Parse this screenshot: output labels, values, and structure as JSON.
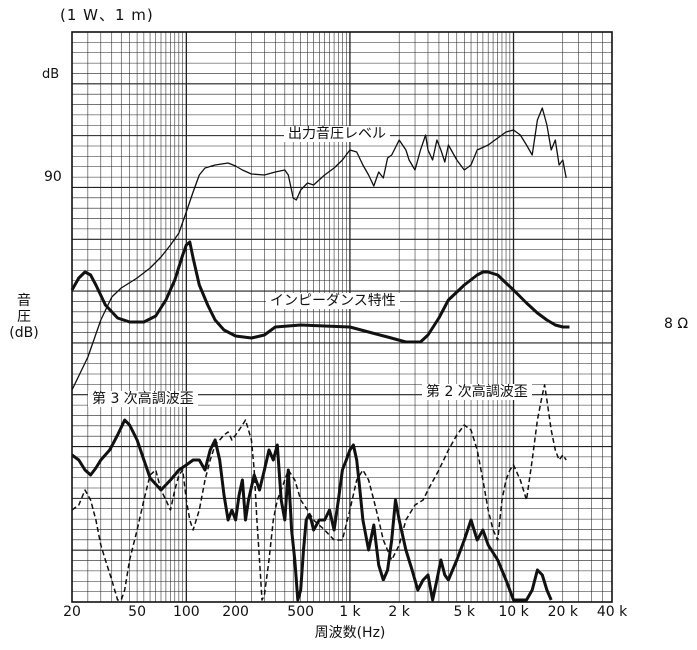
{
  "chart_data": {
    "type": "line",
    "conditions": "(1 W、1 m)",
    "xlabel": "周波数(Hz)",
    "ylabel": "音\n圧\n(dB)",
    "y_unit": "dB",
    "y_tick_90": "90",
    "right_label": "8 Ω",
    "x_scale": "log",
    "xlim": [
      20,
      40000
    ],
    "grid": true,
    "x_ticks": [
      {
        "v": 20,
        "label": "20"
      },
      {
        "v": 50,
        "label": "50"
      },
      {
        "v": 100,
        "label": "100"
      },
      {
        "v": 200,
        "label": "200"
      },
      {
        "v": 500,
        "label": "500"
      },
      {
        "v": 1000,
        "label": "1 k"
      },
      {
        "v": 2000,
        "label": "2 k"
      },
      {
        "v": 5000,
        "label": "5 k"
      },
      {
        "v": 10000,
        "label": "10 k"
      },
      {
        "v": 20000,
        "label": "20 k"
      },
      {
        "v": 40000,
        "label": "40 k"
      }
    ],
    "series": [
      {
        "name": "出力音圧レベル",
        "style": "thin",
        "points": [
          [
            20,
            390
          ],
          [
            25,
            357
          ],
          [
            30,
            320
          ],
          [
            35,
            297
          ],
          [
            40,
            288
          ],
          [
            50,
            278
          ],
          [
            60,
            268
          ],
          [
            70,
            257
          ],
          [
            80,
            245
          ],
          [
            90,
            233
          ],
          [
            100,
            212
          ],
          [
            110,
            192
          ],
          [
            120,
            175
          ],
          [
            130,
            168
          ],
          [
            150,
            165
          ],
          [
            180,
            163
          ],
          [
            200,
            166
          ],
          [
            220,
            170
          ],
          [
            250,
            174
          ],
          [
            300,
            175
          ],
          [
            350,
            172
          ],
          [
            400,
            170
          ],
          [
            420,
            175
          ],
          [
            450,
            198
          ],
          [
            470,
            200
          ],
          [
            500,
            190
          ],
          [
            550,
            183
          ],
          [
            600,
            185
          ],
          [
            700,
            175
          ],
          [
            800,
            168
          ],
          [
            900,
            160
          ],
          [
            1000,
            150
          ],
          [
            1100,
            152
          ],
          [
            1200,
            165
          ],
          [
            1300,
            175
          ],
          [
            1400,
            186
          ],
          [
            1500,
            172
          ],
          [
            1600,
            178
          ],
          [
            1700,
            158
          ],
          [
            1800,
            155
          ],
          [
            2000,
            140
          ],
          [
            2200,
            150
          ],
          [
            2300,
            160
          ],
          [
            2500,
            170
          ],
          [
            2700,
            150
          ],
          [
            2900,
            135
          ],
          [
            3000,
            150
          ],
          [
            3200,
            160
          ],
          [
            3400,
            140
          ],
          [
            3600,
            150
          ],
          [
            3800,
            162
          ],
          [
            4000,
            145
          ],
          [
            4500,
            160
          ],
          [
            5000,
            170
          ],
          [
            5500,
            165
          ],
          [
            6000,
            150
          ],
          [
            7000,
            145
          ],
          [
            8000,
            138
          ],
          [
            9000,
            132
          ],
          [
            10000,
            130
          ],
          [
            11000,
            135
          ],
          [
            12000,
            145
          ],
          [
            13000,
            155
          ],
          [
            14000,
            120
          ],
          [
            15000,
            108
          ],
          [
            16000,
            125
          ],
          [
            17000,
            150
          ],
          [
            18000,
            140
          ],
          [
            19000,
            165
          ],
          [
            20000,
            160
          ],
          [
            21000,
            178
          ]
        ]
      },
      {
        "name": "インピーダンス特性",
        "style": "thick",
        "points": [
          [
            20,
            290
          ],
          [
            22,
            278
          ],
          [
            24,
            272
          ],
          [
            26,
            275
          ],
          [
            28,
            285
          ],
          [
            32,
            305
          ],
          [
            38,
            318
          ],
          [
            45,
            322
          ],
          [
            55,
            322
          ],
          [
            65,
            316
          ],
          [
            75,
            300
          ],
          [
            85,
            280
          ],
          [
            95,
            255
          ],
          [
            100,
            245
          ],
          [
            105,
            242
          ],
          [
            110,
            258
          ],
          [
            120,
            285
          ],
          [
            135,
            305
          ],
          [
            150,
            320
          ],
          [
            170,
            330
          ],
          [
            200,
            336
          ],
          [
            250,
            338
          ],
          [
            300,
            335
          ],
          [
            350,
            327
          ],
          [
            500,
            325
          ],
          [
            700,
            326
          ],
          [
            1000,
            327
          ],
          [
            1300,
            332
          ],
          [
            1700,
            337
          ],
          [
            2200,
            342
          ],
          [
            2700,
            342
          ],
          [
            3000,
            335
          ],
          [
            3500,
            318
          ],
          [
            4000,
            300
          ],
          [
            5000,
            285
          ],
          [
            6000,
            275
          ],
          [
            6500,
            272
          ],
          [
            7000,
            272
          ],
          [
            8000,
            275
          ],
          [
            9000,
            283
          ],
          [
            10000,
            290
          ],
          [
            12000,
            303
          ],
          [
            14000,
            313
          ],
          [
            16000,
            320
          ],
          [
            18000,
            325
          ],
          [
            20000,
            327
          ],
          [
            22000,
            327
          ]
        ]
      },
      {
        "name": "第 3 次高調波歪",
        "style": "thick",
        "points": [
          [
            20,
            455
          ],
          [
            22,
            460
          ],
          [
            24,
            470
          ],
          [
            26,
            475
          ],
          [
            28,
            468
          ],
          [
            30,
            460
          ],
          [
            34,
            450
          ],
          [
            38,
            435
          ],
          [
            42,
            420
          ],
          [
            45,
            425
          ],
          [
            50,
            440
          ],
          [
            55,
            460
          ],
          [
            60,
            478
          ],
          [
            70,
            490
          ],
          [
            80,
            480
          ],
          [
            90,
            470
          ],
          [
            100,
            465
          ],
          [
            110,
            460
          ],
          [
            120,
            460
          ],
          [
            130,
            470
          ],
          [
            140,
            450
          ],
          [
            150,
            440
          ],
          [
            160,
            460
          ],
          [
            170,
            495
          ],
          [
            180,
            520
          ],
          [
            190,
            510
          ],
          [
            200,
            520
          ],
          [
            210,
            495
          ],
          [
            220,
            480
          ],
          [
            230,
            520
          ],
          [
            240,
            500
          ],
          [
            260,
            475
          ],
          [
            280,
            490
          ],
          [
            300,
            470
          ],
          [
            320,
            450
          ],
          [
            340,
            460
          ],
          [
            360,
            445
          ],
          [
            380,
            500
          ],
          [
            400,
            520
          ],
          [
            420,
            470
          ],
          [
            440,
            530
          ],
          [
            460,
            560
          ],
          [
            480,
            600
          ],
          [
            500,
            590
          ],
          [
            520,
            550
          ],
          [
            540,
            520
          ],
          [
            560,
            515
          ],
          [
            580,
            520
          ],
          [
            600,
            530
          ],
          [
            650,
            520
          ],
          [
            700,
            520
          ],
          [
            750,
            510
          ],
          [
            800,
            530
          ],
          [
            850,
            500
          ],
          [
            900,
            470
          ],
          [
            950,
            460
          ],
          [
            1000,
            450
          ],
          [
            1050,
            445
          ],
          [
            1100,
            460
          ],
          [
            1150,
            490
          ],
          [
            1200,
            520
          ],
          [
            1300,
            550
          ],
          [
            1400,
            525
          ],
          [
            1500,
            565
          ],
          [
            1600,
            580
          ],
          [
            1700,
            570
          ],
          [
            1800,
            540
          ],
          [
            1900,
            500
          ],
          [
            2000,
            520
          ],
          [
            2200,
            550
          ],
          [
            2400,
            570
          ],
          [
            2600,
            590
          ],
          [
            2800,
            580
          ],
          [
            3000,
            575
          ],
          [
            3200,
            600
          ],
          [
            3400,
            580
          ],
          [
            3600,
            560
          ],
          [
            3800,
            575
          ],
          [
            4000,
            580
          ],
          [
            4500,
            560
          ],
          [
            5000,
            540
          ],
          [
            5500,
            520
          ],
          [
            6000,
            540
          ],
          [
            6500,
            530
          ],
          [
            7000,
            545
          ],
          [
            8000,
            560
          ],
          [
            9000,
            580
          ],
          [
            10000,
            600
          ],
          [
            12000,
            600
          ],
          [
            13000,
            590
          ],
          [
            14000,
            570
          ],
          [
            15000,
            575
          ],
          [
            16000,
            590
          ],
          [
            17000,
            600
          ]
        ]
      },
      {
        "name": "第 2 次高調波歪",
        "style": "dashed",
        "points": [
          [
            20,
            510
          ],
          [
            22,
            505
          ],
          [
            24,
            490
          ],
          [
            26,
            500
          ],
          [
            28,
            520
          ],
          [
            30,
            545
          ],
          [
            32,
            560
          ],
          [
            35,
            580
          ],
          [
            38,
            600
          ],
          [
            40,
            600
          ],
          [
            42,
            590
          ],
          [
            45,
            560
          ],
          [
            50,
            530
          ],
          [
            55,
            500
          ],
          [
            60,
            475
          ],
          [
            65,
            470
          ],
          [
            70,
            490
          ],
          [
            75,
            500
          ],
          [
            80,
            510
          ],
          [
            85,
            490
          ],
          [
            90,
            475
          ],
          [
            95,
            470
          ],
          [
            100,
            500
          ],
          [
            105,
            520
          ],
          [
            110,
            530
          ],
          [
            120,
            510
          ],
          [
            130,
            480
          ],
          [
            140,
            460
          ],
          [
            150,
            445
          ],
          [
            160,
            440
          ],
          [
            170,
            435
          ],
          [
            180,
            432
          ],
          [
            190,
            440
          ],
          [
            200,
            435
          ],
          [
            210,
            430
          ],
          [
            220,
            425
          ],
          [
            230,
            420
          ],
          [
            240,
            430
          ],
          [
            250,
            440
          ],
          [
            260,
            470
          ],
          [
            270,
            520
          ],
          [
            280,
            560
          ],
          [
            290,
            600
          ],
          [
            300,
            595
          ],
          [
            320,
            560
          ],
          [
            340,
            520
          ],
          [
            360,
            500
          ],
          [
            380,
            490
          ],
          [
            400,
            480
          ],
          [
            420,
            470
          ],
          [
            440,
            475
          ],
          [
            460,
            480
          ],
          [
            480,
            490
          ],
          [
            500,
            500
          ],
          [
            550,
            510
          ],
          [
            600,
            520
          ],
          [
            700,
            530
          ],
          [
            800,
            540
          ],
          [
            900,
            540
          ],
          [
            1000,
            510
          ],
          [
            1100,
            480
          ],
          [
            1200,
            470
          ],
          [
            1300,
            480
          ],
          [
            1400,
            500
          ],
          [
            1500,
            520
          ],
          [
            1600,
            540
          ],
          [
            1800,
            560
          ],
          [
            2000,
            545
          ],
          [
            2200,
            520
          ],
          [
            2500,
            505
          ],
          [
            2800,
            500
          ],
          [
            3000,
            490
          ],
          [
            3500,
            470
          ],
          [
            4000,
            450
          ],
          [
            4500,
            435
          ],
          [
            5000,
            425
          ],
          [
            5500,
            430
          ],
          [
            6000,
            450
          ],
          [
            6500,
            480
          ],
          [
            7000,
            510
          ],
          [
            7500,
            530
          ],
          [
            8000,
            540
          ],
          [
            8500,
            500
          ],
          [
            9000,
            480
          ],
          [
            9500,
            470
          ],
          [
            10000,
            465
          ],
          [
            11000,
            480
          ],
          [
            12000,
            500
          ],
          [
            13000,
            460
          ],
          [
            14000,
            420
          ],
          [
            15000,
            395
          ],
          [
            15500,
            385
          ],
          [
            16000,
            400
          ],
          [
            17000,
            430
          ],
          [
            18000,
            450
          ],
          [
            19000,
            460
          ],
          [
            20000,
            455
          ],
          [
            21000,
            460
          ]
        ]
      }
    ],
    "series_labels": [
      {
        "name": "出力音圧レベル"
      },
      {
        "name": "インピーダンス特性"
      },
      {
        "name": "第 3 次高調波歪"
      },
      {
        "name": "第 2 次高調波歪"
      }
    ]
  }
}
